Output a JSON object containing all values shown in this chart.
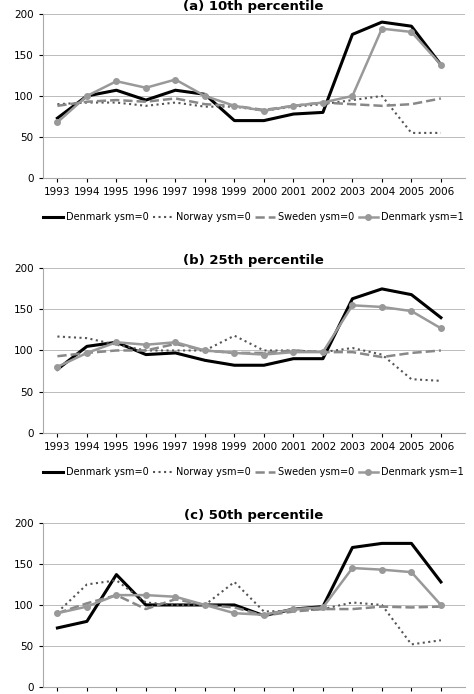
{
  "years": [
    1993,
    1994,
    1995,
    1996,
    1997,
    1998,
    1999,
    2000,
    2001,
    2002,
    2003,
    2004,
    2005,
    2006
  ],
  "panels": [
    {
      "title": "(a) 10th percentile",
      "denmark_ysm0": [
        73,
        100,
        107,
        95,
        107,
        102,
        70,
        70,
        78,
        80,
        175,
        190,
        185,
        138
      ],
      "norway_ysm0": [
        90,
        92,
        92,
        88,
        92,
        87,
        87,
        82,
        87,
        90,
        95,
        100,
        55,
        55
      ],
      "sweden_ysm0": [
        88,
        93,
        95,
        93,
        97,
        90,
        88,
        83,
        88,
        92,
        90,
        88,
        90,
        97
      ],
      "denmark_ysm1": [
        68,
        100,
        118,
        110,
        120,
        100,
        88,
        82,
        88,
        92,
        100,
        182,
        178,
        138
      ]
    },
    {
      "title": "(b) 25th percentile",
      "denmark_ysm0": [
        77,
        105,
        110,
        95,
        97,
        88,
        82,
        82,
        90,
        90,
        163,
        175,
        168,
        140
      ],
      "norway_ysm0": [
        117,
        115,
        107,
        100,
        100,
        100,
        118,
        100,
        100,
        98,
        103,
        95,
        65,
        63
      ],
      "sweden_ysm0": [
        93,
        97,
        100,
        100,
        108,
        100,
        97,
        97,
        100,
        98,
        98,
        92,
        97,
        100
      ],
      "denmark_ysm1": [
        80,
        97,
        110,
        107,
        110,
        100,
        97,
        95,
        98,
        98,
        155,
        153,
        148,
        127
      ]
    },
    {
      "title": "(c) 50th percentile",
      "denmark_ysm0": [
        72,
        80,
        137,
        100,
        100,
        100,
        100,
        87,
        95,
        98,
        170,
        175,
        175,
        128
      ],
      "norway_ysm0": [
        91,
        125,
        130,
        103,
        100,
        100,
        128,
        92,
        93,
        95,
        103,
        100,
        52,
        57
      ],
      "sweden_ysm0": [
        90,
        102,
        112,
        95,
        107,
        100,
        97,
        87,
        92,
        95,
        95,
        98,
        97,
        98
      ],
      "denmark_ysm1": [
        90,
        98,
        112,
        112,
        110,
        100,
        90,
        88,
        95,
        97,
        145,
        143,
        140,
        100
      ]
    }
  ],
  "legend_labels": [
    "Denmark ysm=0",
    "Norway ysm=0",
    "Sweden ysm=0",
    "Denmark ysm=1"
  ],
  "ylim": [
    0,
    200
  ],
  "yticks": [
    0,
    50,
    100,
    150,
    200
  ],
  "colors": {
    "denmark_ysm0": "#000000",
    "norway_ysm0": "#555555",
    "sweden_ysm0": "#888888",
    "denmark_ysm1": "#999999"
  },
  "linestyles": {
    "denmark_ysm0": "solid",
    "norway_ysm0": "dotted",
    "sweden_ysm0": "dashed",
    "denmark_ysm1": "solid"
  },
  "linewidths": {
    "denmark_ysm0": 2.2,
    "norway_ysm0": 1.5,
    "sweden_ysm0": 1.8,
    "denmark_ysm1": 1.8
  },
  "markers": {
    "denmark_ysm0": null,
    "norway_ysm0": null,
    "sweden_ysm0": null,
    "denmark_ysm1": "o"
  },
  "marker_size": 4,
  "background_color": "#ffffff",
  "grid_color": "#bbbbbb",
  "title_fontsize": 9.5,
  "tick_fontsize": 7.5,
  "legend_fontsize": 7
}
